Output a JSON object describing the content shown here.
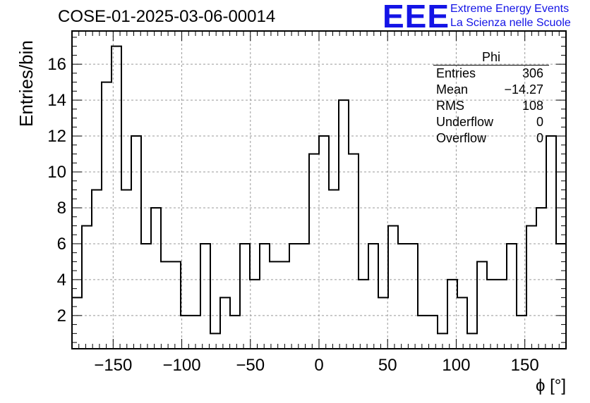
{
  "chart_data": {
    "type": "histogram",
    "title": "COSE-01-2025-03-06-00014",
    "xlabel": "ϕ [°]",
    "ylabel": "Entries/bin",
    "xlim": [
      -180,
      180
    ],
    "ylim": [
      0.15,
      17.85
    ],
    "bin_width": 7.2,
    "bin_contents": [
      3,
      7,
      9,
      15,
      17,
      9,
      12,
      6,
      8,
      5,
      5,
      2,
      2,
      6,
      1,
      3,
      2,
      6,
      4,
      6,
      5,
      5,
      6,
      6,
      11,
      12,
      9,
      14,
      11,
      4,
      6,
      3,
      7,
      6,
      6,
      2,
      2,
      1,
      4,
      3,
      1,
      5,
      4,
      4,
      6,
      2,
      7,
      8,
      12,
      6
    ],
    "x_ticks": [
      "−150",
      "−100",
      "−50",
      "0",
      "50",
      "100",
      "150"
    ],
    "y_ticks": [
      "2",
      "4",
      "6",
      "8",
      "10",
      "12",
      "14",
      "16"
    ],
    "grid": true,
    "stats_box": {
      "name": "Phi",
      "rows": [
        {
          "label": "Entries",
          "value": "306"
        },
        {
          "label": "Mean",
          "value": "−14.27"
        },
        {
          "label": "RMS",
          "value": "108"
        },
        {
          "label": "Underflow",
          "value": "0"
        },
        {
          "label": "Overflow",
          "value": "0"
        }
      ]
    }
  },
  "logo": {
    "mark": "EEE",
    "line1": "Extreme Energy Events",
    "line2": "La Scienza nelle Scuole",
    "color": "#1414e6"
  }
}
